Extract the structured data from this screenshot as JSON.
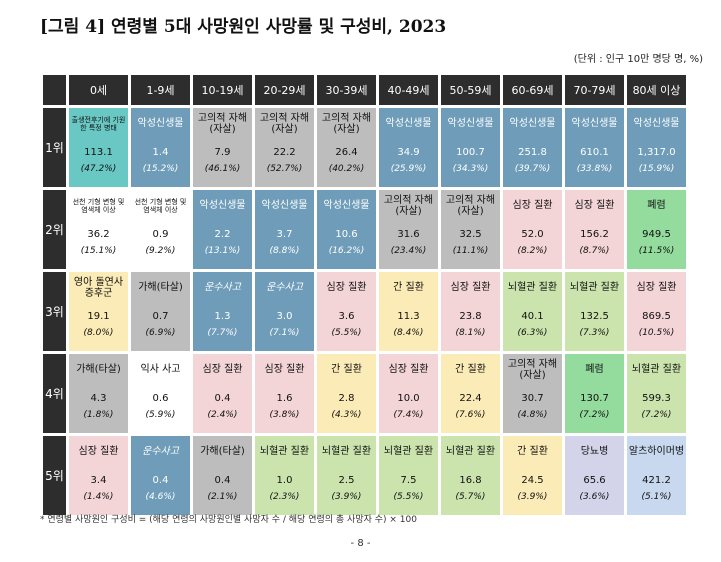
{
  "title": "[그림 4] 연령별 5대 사망원인 사망률 및 구성비, 2023",
  "unit": "(단위 : 인구 10만 명당 명, %)",
  "columns": [
    "0세",
    "1-9세",
    "10-19세",
    "20-29세",
    "30-39세",
    "40-49세",
    "50-59세",
    "60-69세",
    "70-79세",
    "80세 이상"
  ],
  "rows": [
    {
      "rank": "1위",
      "cells": [
        {
          "name": "출생전후기에 기원한 특정 병태",
          "rate": "113.1",
          "pct": "(47.2%)",
          "color": "teal",
          "small": true
        },
        {
          "name": "악성신생물",
          "rate": "1.4",
          "pct": "(15.2%)",
          "color": "blue"
        },
        {
          "name": "고의적 자해(자살)",
          "rate": "7.9",
          "pct": "(46.1%)",
          "color": "gray"
        },
        {
          "name": "고의적 자해(자살)",
          "rate": "22.2",
          "pct": "(52.7%)",
          "color": "gray"
        },
        {
          "name": "고의적 자해(자살)",
          "rate": "26.4",
          "pct": "(40.2%)",
          "color": "gray"
        },
        {
          "name": "악성신생물",
          "rate": "34.9",
          "pct": "(25.9%)",
          "color": "blue"
        },
        {
          "name": "악성신생물",
          "rate": "100.7",
          "pct": "(34.3%)",
          "color": "blue"
        },
        {
          "name": "악성신생물",
          "rate": "251.8",
          "pct": "(39.7%)",
          "color": "blue"
        },
        {
          "name": "악성신생물",
          "rate": "610.1",
          "pct": "(33.8%)",
          "color": "blue"
        },
        {
          "name": "악성신생물",
          "rate": "1,317.0",
          "pct": "(15.9%)",
          "color": "blue"
        }
      ]
    },
    {
      "rank": "2위",
      "cells": [
        {
          "name": "선천 기형 변형 및 염색체 이상",
          "rate": "36.2",
          "pct": "(15.1%)",
          "color": "white",
          "small": true
        },
        {
          "name": "선천 기형 변형 및 염색체 이상",
          "rate": "0.9",
          "pct": "(9.2%)",
          "color": "white",
          "small": true
        },
        {
          "name": "악성신생물",
          "rate": "2.2",
          "pct": "(13.1%)",
          "color": "blue"
        },
        {
          "name": "악성신생물",
          "rate": "3.7",
          "pct": "(8.8%)",
          "color": "blue"
        },
        {
          "name": "악성신생물",
          "rate": "10.6",
          "pct": "(16.2%)",
          "color": "blue"
        },
        {
          "name": "고의적 자해(자살)",
          "rate": "31.6",
          "pct": "(23.4%)",
          "color": "gray"
        },
        {
          "name": "고의적 자해(자살)",
          "rate": "32.5",
          "pct": "(11.1%)",
          "color": "gray"
        },
        {
          "name": "심장 질환",
          "rate": "52.0",
          "pct": "(8.2%)",
          "color": "pink"
        },
        {
          "name": "심장 질환",
          "rate": "156.2",
          "pct": "(8.7%)",
          "color": "pink"
        },
        {
          "name": "폐렴",
          "rate": "949.5",
          "pct": "(11.5%)",
          "color": "mint"
        }
      ]
    },
    {
      "rank": "3위",
      "cells": [
        {
          "name": "영아 돌연사 증후군",
          "rate": "19.1",
          "pct": "(8.0%)",
          "color": "yellow"
        },
        {
          "name": "가해(타살)",
          "rate": "0.7",
          "pct": "(6.9%)",
          "color": "gray"
        },
        {
          "name": "운수사고",
          "rate": "1.3",
          "pct": "(7.7%)",
          "color": "blue",
          "italic": true
        },
        {
          "name": "운수사고",
          "rate": "3.0",
          "pct": "(7.1%)",
          "color": "blue",
          "italic": true
        },
        {
          "name": "심장 질환",
          "rate": "3.6",
          "pct": "(5.5%)",
          "color": "pink"
        },
        {
          "name": "간 질환",
          "rate": "11.3",
          "pct": "(8.4%)",
          "color": "yellow"
        },
        {
          "name": "심장 질환",
          "rate": "23.8",
          "pct": "(8.1%)",
          "color": "pink"
        },
        {
          "name": "뇌혈관 질환",
          "rate": "40.1",
          "pct": "(6.3%)",
          "color": "green"
        },
        {
          "name": "뇌혈관 질환",
          "rate": "132.5",
          "pct": "(7.3%)",
          "color": "green"
        },
        {
          "name": "심장 질환",
          "rate": "869.5",
          "pct": "(10.5%)",
          "color": "pink"
        }
      ]
    },
    {
      "rank": "4위",
      "cells": [
        {
          "name": "가해(타살)",
          "rate": "4.3",
          "pct": "(1.8%)",
          "color": "gray"
        },
        {
          "name": "익사 사고",
          "rate": "0.6",
          "pct": "(5.9%)",
          "color": "white"
        },
        {
          "name": "심장 질환",
          "rate": "0.4",
          "pct": "(2.4%)",
          "color": "pink"
        },
        {
          "name": "심장 질환",
          "rate": "1.6",
          "pct": "(3.8%)",
          "color": "pink"
        },
        {
          "name": "간 질환",
          "rate": "2.8",
          "pct": "(4.3%)",
          "color": "yellow"
        },
        {
          "name": "심장 질환",
          "rate": "10.0",
          "pct": "(7.4%)",
          "color": "pink"
        },
        {
          "name": "간 질환",
          "rate": "22.4",
          "pct": "(7.6%)",
          "color": "yellow"
        },
        {
          "name": "고의적 자해(자살)",
          "rate": "30.7",
          "pct": "(4.8%)",
          "color": "gray"
        },
        {
          "name": "폐렴",
          "rate": "130.7",
          "pct": "(7.2%)",
          "color": "mint"
        },
        {
          "name": "뇌혈관 질환",
          "rate": "599.3",
          "pct": "(7.2%)",
          "color": "green"
        }
      ]
    },
    {
      "rank": "5위",
      "cells": [
        {
          "name": "심장 질환",
          "rate": "3.4",
          "pct": "(1.4%)",
          "color": "pink"
        },
        {
          "name": "운수사고",
          "rate": "0.4",
          "pct": "(4.6%)",
          "color": "blue",
          "italic": true
        },
        {
          "name": "가해(타살)",
          "rate": "0.4",
          "pct": "(2.1%)",
          "color": "gray"
        },
        {
          "name": "뇌혈관 질환",
          "rate": "1.0",
          "pct": "(2.3%)",
          "color": "green"
        },
        {
          "name": "뇌혈관 질환",
          "rate": "2.5",
          "pct": "(3.9%)",
          "color": "green"
        },
        {
          "name": "뇌혈관 질환",
          "rate": "7.5",
          "pct": "(5.5%)",
          "color": "green"
        },
        {
          "name": "뇌혈관 질환",
          "rate": "16.8",
          "pct": "(5.7%)",
          "color": "green"
        },
        {
          "name": "간 질환",
          "rate": "24.5",
          "pct": "(3.9%)",
          "color": "yellow"
        },
        {
          "name": "당뇨병",
          "rate": "65.6",
          "pct": "(3.6%)",
          "color": "lav"
        },
        {
          "name": "알츠하이머병",
          "rate": "421.2",
          "pct": "(5.1%)",
          "color": "peri"
        }
      ]
    }
  ],
  "footnote": "* 연령별 사망원인 구성비 = (해당 연령의 사망원인별 사망자 수 / 해당 연령의 총 사망자 수) × 100",
  "page_number": "- 8 -"
}
